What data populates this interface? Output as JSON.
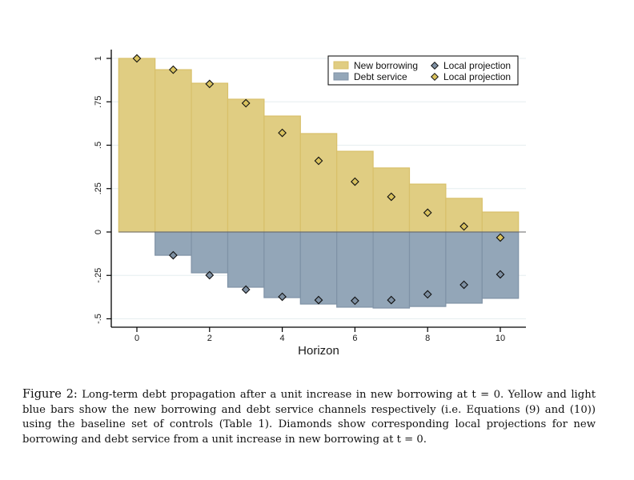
{
  "chart_data": {
    "type": "bar",
    "xlabel": "Horizon",
    "ylabel": "",
    "xlim": [
      -0.5,
      10.5
    ],
    "ylim": [
      -0.52,
      1.02
    ],
    "x": [
      0,
      1,
      2,
      3,
      4,
      5,
      6,
      7,
      8,
      9,
      10
    ],
    "xticks": [
      0,
      2,
      4,
      6,
      8,
      10
    ],
    "xtick_labels": [
      "0",
      "2",
      "4",
      "6",
      "8",
      "10"
    ],
    "yticks": [
      1,
      0.75,
      0.5,
      0.25,
      0,
      -0.25,
      -0.5
    ],
    "ytick_labels": [
      "1",
      ".75",
      ".5",
      ".25",
      "0",
      "-.25",
      "-.5"
    ],
    "grid": true,
    "legend_position": "top-right",
    "series": [
      {
        "name": "New borrowing",
        "kind": "bar",
        "color": "#e0cd82",
        "edge": "#d8c06a",
        "values": [
          1.0,
          0.935,
          0.857,
          0.765,
          0.668,
          0.567,
          0.465,
          0.369,
          0.276,
          0.194,
          0.115
        ]
      },
      {
        "name": "Debt service",
        "kind": "bar",
        "color": "#93a6b8",
        "edge": "#7f92a6",
        "values": [
          0,
          -0.134,
          -0.235,
          -0.318,
          -0.378,
          -0.415,
          -0.433,
          -0.438,
          -0.429,
          -0.41,
          -0.382
        ]
      },
      {
        "name": "Local projection",
        "kind": "diamond",
        "color": "#7e90a3",
        "values": [
          null,
          -0.134,
          -0.249,
          -0.332,
          -0.373,
          -0.392,
          -0.396,
          -0.392,
          -0.359,
          -0.304,
          -0.244
        ]
      },
      {
        "name": "Local projection",
        "kind": "diamond",
        "color": "#d9c25e",
        "values": [
          1.0,
          0.935,
          0.853,
          0.742,
          0.571,
          0.41,
          0.29,
          0.203,
          0.111,
          0.032,
          -0.032
        ]
      }
    ],
    "legend": [
      {
        "label": "New borrowing",
        "symbol": "box",
        "color": "#e0cd82"
      },
      {
        "label": "Local projection",
        "symbol": "diamond",
        "color": "#7e90a3"
      },
      {
        "label": "Debt service",
        "symbol": "box",
        "color": "#93a6b8"
      },
      {
        "label": "Local projection",
        "symbol": "diamond",
        "color": "#d9c25e"
      }
    ]
  },
  "caption": {
    "label": "Figure 2:",
    "text": "Long-term debt propagation after a unit increase in new borrowing at t = 0. Yellow and light blue bars show the new borrowing and debt service channels respectively (i.e. Equations (9) and (10)) using the baseline set of controls (Table 1). Diamonds show corresponding local projections for new borrowing and debt service from a unit increase in new borrowing at t = 0."
  }
}
